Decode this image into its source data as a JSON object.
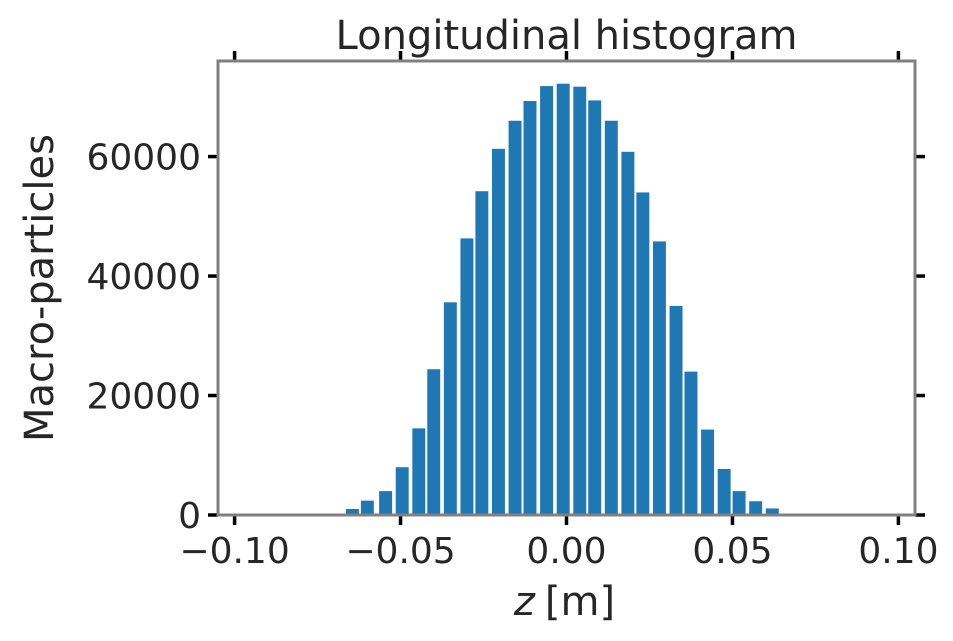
{
  "chart_data": {
    "type": "bar",
    "title": "Longitudinal histogram",
    "xlabel_var": "z",
    "xlabel_unit": "[m]",
    "ylabel": "Macro-particles",
    "xlim": [
      -0.105,
      0.105
    ],
    "ylim": [
      0,
      76000
    ],
    "xticks": [
      -0.1,
      -0.05,
      0.0,
      0.05,
      0.1
    ],
    "xtick_labels": [
      "−0.10",
      "−0.05",
      "0.00",
      "0.05",
      "0.10"
    ],
    "yticks": [
      0,
      20000,
      40000,
      60000
    ],
    "ytick_labels": [
      "0",
      "20000",
      "40000",
      "60000"
    ],
    "bar_width": 0.0039,
    "bar_color": "#1f77b4",
    "spine_color": "#808080",
    "x": [
      -0.0645,
      -0.06,
      -0.0545,
      -0.0495,
      -0.0445,
      -0.04,
      -0.035,
      -0.03,
      -0.0255,
      -0.0205,
      -0.0155,
      -0.011,
      -0.006,
      -0.001,
      0.004,
      0.0085,
      0.0135,
      0.0185,
      0.023,
      0.028,
      0.033,
      0.0375,
      0.0425,
      0.0475,
      0.052,
      0.057,
      0.062,
      0.0665
    ],
    "values": [
      1000,
      2400,
      4000,
      8000,
      14500,
      24400,
      35600,
      46300,
      54200,
      61300,
      66000,
      69300,
      71800,
      72200,
      71700,
      69400,
      66000,
      60800,
      54000,
      45800,
      35000,
      24000,
      14300,
      7700,
      4000,
      2300,
      1100,
      200
    ],
    "grid": false
  }
}
